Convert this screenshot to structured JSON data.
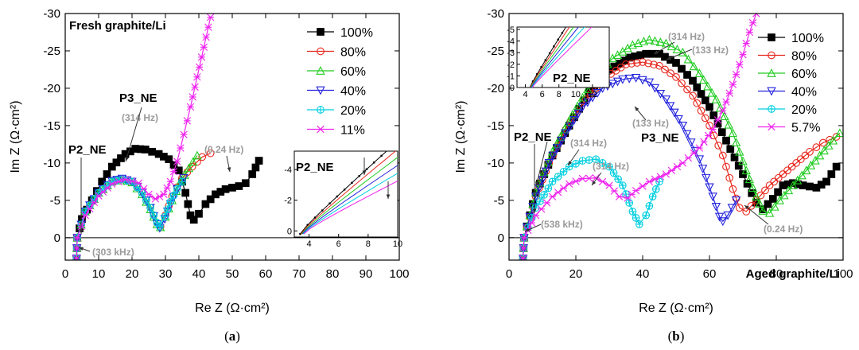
{
  "chart_data": [
    {
      "type": "line",
      "panel": "a",
      "caption_letter": "a",
      "title": "Fresh graphite/Li",
      "xlabel": "Re Z",
      "ylabel": "Im Z",
      "unit": "(Ω·cm²)",
      "xlim": [
        0,
        100
      ],
      "ylim": [
        3,
        -30
      ],
      "xticks": [
        0,
        10,
        20,
        30,
        40,
        50,
        60,
        70,
        80,
        90,
        100
      ],
      "yticks": [
        0,
        -5,
        -10,
        -15,
        -20,
        -25,
        -30
      ],
      "legend": [
        "100%",
        "80%",
        "60%",
        "40%",
        "20%",
        "11%"
      ],
      "series": [
        {
          "name": "100%",
          "color": "#000000",
          "marker": "square",
          "points": [
            [
              3.4,
              2.8
            ],
            [
              3.6,
              0
            ],
            [
              5,
              -2.5
            ],
            [
              8,
              -5
            ],
            [
              11,
              -7.5
            ],
            [
              14,
              -9.5
            ],
            [
              18,
              -11.2
            ],
            [
              21,
              -11.9
            ],
            [
              24,
              -11.8
            ],
            [
              28,
              -11.2
            ],
            [
              31,
              -10.5
            ],
            [
              34,
              -9
            ],
            [
              36,
              -6
            ],
            [
              37.5,
              -3
            ],
            [
              38.5,
              -2.4
            ],
            [
              40,
              -3.2
            ],
            [
              42,
              -4.5
            ],
            [
              45,
              -5.8
            ],
            [
              48,
              -6.5
            ],
            [
              52,
              -6.9
            ],
            [
              54,
              -7.3
            ],
            [
              56,
              -8.5
            ],
            [
              58,
              -10.3
            ]
          ]
        },
        {
          "name": "80%",
          "color": "#e8281e",
          "marker": "circle",
          "points": [
            [
              3.4,
              2.8
            ],
            [
              3.6,
              0
            ],
            [
              6,
              -3.5
            ],
            [
              10,
              -6
            ],
            [
              14,
              -7.5
            ],
            [
              17,
              -7.8
            ],
            [
              20,
              -7.5
            ],
            [
              23,
              -6
            ],
            [
              25.5,
              -4
            ],
            [
              27.5,
              -2
            ],
            [
              28.5,
              -1.5
            ],
            [
              30,
              -3
            ],
            [
              32,
              -5.5
            ],
            [
              35,
              -8
            ],
            [
              38,
              -9.5
            ],
            [
              41,
              -10.8
            ],
            [
              43.5,
              -11.3
            ]
          ]
        },
        {
          "name": "60%",
          "color": "#22cc22",
          "marker": "triangle-up",
          "points": [
            [
              3.4,
              2.8
            ],
            [
              3.6,
              0
            ],
            [
              6,
              -3.5
            ],
            [
              10,
              -6
            ],
            [
              14,
              -7.5
            ],
            [
              17,
              -7.8
            ],
            [
              20,
              -7.4
            ],
            [
              23,
              -5.8
            ],
            [
              25.5,
              -3.8
            ],
            [
              27.5,
              -1.8
            ],
            [
              28.5,
              -1.4
            ],
            [
              30,
              -2.8
            ],
            [
              32,
              -5
            ],
            [
              34.5,
              -7.5
            ],
            [
              37,
              -9.3
            ],
            [
              39.5,
              -11
            ]
          ]
        },
        {
          "name": "40%",
          "color": "#2222dd",
          "marker": "triangle-down",
          "points": [
            [
              3.4,
              2.8
            ],
            [
              3.6,
              0
            ],
            [
              6,
              -3.5
            ],
            [
              10,
              -6
            ],
            [
              14,
              -7.6
            ],
            [
              17,
              -7.9
            ],
            [
              20,
              -7.5
            ],
            [
              23,
              -6
            ],
            [
              25.5,
              -4
            ],
            [
              27.5,
              -1.8
            ],
            [
              28.3,
              -1.3
            ],
            [
              29.8,
              -2.5
            ],
            [
              31.5,
              -4.5
            ],
            [
              33.5,
              -6.5
            ],
            [
              35.5,
              -8
            ]
          ]
        },
        {
          "name": "20%",
          "color": "#00cfe0",
          "marker": "crossed-circle",
          "points": [
            [
              3.4,
              2.8
            ],
            [
              3.6,
              0
            ],
            [
              6,
              -3.5
            ],
            [
              10,
              -6
            ],
            [
              14,
              -7.5
            ],
            [
              17,
              -7.8
            ],
            [
              20,
              -7.5
            ],
            [
              23,
              -6
            ],
            [
              25.5,
              -4
            ],
            [
              27.5,
              -2
            ],
            [
              28.3,
              -1.5
            ],
            [
              29.8,
              -2.8
            ],
            [
              31.5,
              -4.8
            ],
            [
              33.5,
              -6.5
            ],
            [
              35,
              -7.5
            ]
          ]
        },
        {
          "name": "11%",
          "color": "#ee22ee",
          "marker": "star",
          "points": [
            [
              3.4,
              2.8
            ],
            [
              3.6,
              0
            ],
            [
              6,
              -3
            ],
            [
              10,
              -5.6
            ],
            [
              14,
              -7.2
            ],
            [
              18,
              -7.8
            ],
            [
              22,
              -7.3
            ],
            [
              25,
              -5.8
            ],
            [
              27,
              -5.2
            ],
            [
              29.5,
              -5.8
            ],
            [
              31.5,
              -7.5
            ],
            [
              33.5,
              -10.2
            ],
            [
              35.5,
              -13.8
            ],
            [
              37.5,
              -17.5
            ],
            [
              39.5,
              -21.5
            ],
            [
              41.5,
              -25.5
            ],
            [
              43.5,
              -29.5
            ]
          ]
        }
      ],
      "annotations": [
        "P3_NE",
        "P2_NE",
        "(314 Hz)",
        "(0.24 Hz)",
        "(303 kHz)"
      ],
      "inset": {
        "label": "P2_NE",
        "xticks": [
          4,
          6,
          8,
          10
        ],
        "yticks": [
          0,
          -2,
          -4
        ]
      }
    },
    {
      "type": "line",
      "panel": "b",
      "caption_letter": "b",
      "title": "Aged graphite/Li",
      "xlabel": "Re Z",
      "ylabel": "Im Z",
      "unit": "(Ω·cm²)",
      "xlim": [
        0,
        100
      ],
      "ylim": [
        3,
        -30
      ],
      "xticks": [
        0,
        20,
        40,
        60,
        80,
        100
      ],
      "yticks": [
        0,
        -5,
        -10,
        -15,
        -20,
        -25,
        -30
      ],
      "legend": [
        "100%",
        "80%",
        "60%",
        "40%",
        "20%",
        "5.7%"
      ],
      "series": [
        {
          "name": "100%",
          "color": "#000000",
          "marker": "square",
          "points": [
            [
              4.2,
              2.8
            ],
            [
              4.5,
              0
            ],
            [
              8,
              -6
            ],
            [
              13,
              -11
            ],
            [
              18,
              -15
            ],
            [
              24,
              -19.5
            ],
            [
              30,
              -22.5
            ],
            [
              36,
              -24.1
            ],
            [
              41,
              -24.6
            ],
            [
              45,
              -24.6
            ],
            [
              50,
              -23.4
            ],
            [
              55,
              -21
            ],
            [
              60,
              -17.5
            ],
            [
              65,
              -13
            ],
            [
              70,
              -8.5
            ],
            [
              74,
              -4.7
            ],
            [
              76,
              -3.8
            ],
            [
              79,
              -5.2
            ],
            [
              82,
              -7
            ],
            [
              85,
              -7.3
            ],
            [
              88,
              -7
            ],
            [
              92,
              -6.7
            ],
            [
              95,
              -7.5
            ],
            [
              98,
              -9.5
            ]
          ]
        },
        {
          "name": "80%",
          "color": "#e8281e",
          "marker": "circle",
          "points": [
            [
              4.2,
              2.8
            ],
            [
              4.5,
              0
            ],
            [
              8,
              -5.5
            ],
            [
              12,
              -10
            ],
            [
              17,
              -14.5
            ],
            [
              23,
              -18.5
            ],
            [
              29,
              -21.5
            ],
            [
              35,
              -23.2
            ],
            [
              40,
              -23.5
            ],
            [
              45,
              -23
            ],
            [
              50,
              -21.5
            ],
            [
              55,
              -19
            ],
            [
              60,
              -15
            ],
            [
              64,
              -11
            ],
            [
              67,
              -6.5
            ],
            [
              69,
              -4
            ],
            [
              71,
              -3.5
            ],
            [
              74,
              -5
            ],
            [
              78,
              -7
            ],
            [
              82,
              -8.5
            ],
            [
              86,
              -10
            ],
            [
              90,
              -11.5
            ],
            [
              94,
              -12.7
            ],
            [
              98,
              -13.5
            ]
          ]
        },
        {
          "name": "60%",
          "color": "#22cc22",
          "marker": "triangle-up",
          "points": [
            [
              4.2,
              2.8
            ],
            [
              4.5,
              0
            ],
            [
              8,
              -6
            ],
            [
              13,
              -11.5
            ],
            [
              19,
              -16.5
            ],
            [
              25,
              -21
            ],
            [
              31,
              -24
            ],
            [
              37,
              -25.8
            ],
            [
              42,
              -26.5
            ],
            [
              47,
              -26
            ],
            [
              52,
              -24.8
            ],
            [
              57,
              -22
            ],
            [
              62,
              -18.5
            ],
            [
              67,
              -14
            ],
            [
              71,
              -9
            ],
            [
              74,
              -5.5
            ],
            [
              76,
              -3.6
            ],
            [
              78,
              -3.3
            ],
            [
              81,
              -5
            ],
            [
              85,
              -7
            ],
            [
              89,
              -9
            ],
            [
              93,
              -11
            ],
            [
              97,
              -13
            ],
            [
              99,
              -14
            ]
          ]
        },
        {
          "name": "40%",
          "color": "#2222dd",
          "marker": "triangle-down",
          "points": [
            [
              4.2,
              2.8
            ],
            [
              4.5,
              0
            ],
            [
              8,
              -5.5
            ],
            [
              12,
              -10
            ],
            [
              17,
              -14
            ],
            [
              22,
              -17.5
            ],
            [
              28,
              -20
            ],
            [
              34,
              -21.2
            ],
            [
              38,
              -21.4
            ],
            [
              42,
              -20.8
            ],
            [
              47,
              -18.5
            ],
            [
              52,
              -15
            ],
            [
              57,
              -10.5
            ],
            [
              61,
              -5.5
            ],
            [
              63,
              -2.8
            ],
            [
              64,
              -2.2
            ],
            [
              65.5,
              -3
            ],
            [
              68,
              -5
            ]
          ]
        },
        {
          "name": "20%",
          "color": "#00cfe0",
          "marker": "crossed-circle",
          "points": [
            [
              4.2,
              2.8
            ],
            [
              4.5,
              0
            ],
            [
              8,
              -4
            ],
            [
              13,
              -7.5
            ],
            [
              18,
              -9.5
            ],
            [
              22,
              -10.3
            ],
            [
              26,
              -10.5
            ],
            [
              30,
              -9.5
            ],
            [
              34,
              -7
            ],
            [
              37,
              -3.5
            ],
            [
              39,
              -1.8
            ],
            [
              41,
              -3
            ],
            [
              43,
              -5.5
            ],
            [
              45,
              -7.5
            ]
          ]
        },
        {
          "name": "5.7%",
          "color": "#ee22ee",
          "marker": "star",
          "points": [
            [
              4.2,
              2.8
            ],
            [
              4.5,
              0
            ],
            [
              8,
              -3
            ],
            [
              13,
              -5.5
            ],
            [
              18,
              -7.2
            ],
            [
              22,
              -7.9
            ],
            [
              26,
              -8
            ],
            [
              30,
              -7
            ],
            [
              33,
              -5.5
            ],
            [
              35.5,
              -5.3
            ],
            [
              38,
              -6.3
            ],
            [
              42,
              -7.5
            ],
            [
              47,
              -8.5
            ],
            [
              52,
              -10
            ],
            [
              57,
              -12
            ],
            [
              61,
              -14.5
            ],
            [
              64,
              -17
            ],
            [
              67,
              -20.5
            ],
            [
              70,
              -24.5
            ],
            [
              72,
              -27.5
            ],
            [
              74,
              -30
            ]
          ]
        }
      ],
      "annotations": [
        "(314 Hz)",
        "(133 Hz)",
        "(133 Hz)",
        "P3_NE",
        "P2_NE",
        "(314 Hz)",
        "(314 Hz)",
        "(0.24 Hz)",
        "(538 kHz)"
      ],
      "inset": {
        "label": "P2_NE",
        "xticks": [
          4,
          6,
          8,
          10,
          12
        ],
        "yticks": [
          -5,
          -4,
          -3,
          -2,
          -1,
          0
        ]
      }
    }
  ]
}
